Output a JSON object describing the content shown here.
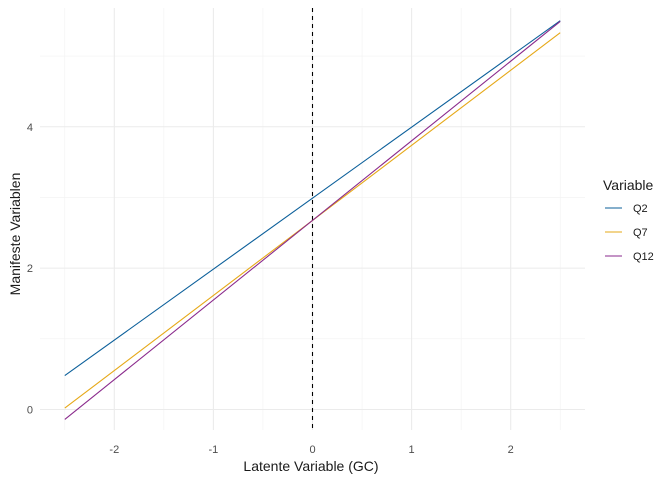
{
  "chart_data": {
    "type": "line",
    "xlabel": "Latente Variable (GC)",
    "ylabel": "Manifeste Variablen",
    "xlim": [
      -2.5,
      2.5
    ],
    "ylim": [
      -0.2,
      5.6
    ],
    "x_ticks": [
      -2,
      -1,
      0,
      1,
      2
    ],
    "y_ticks": [
      0,
      2,
      4
    ],
    "x_tick_labels": [
      "-2",
      "-1",
      "0",
      "1",
      "2"
    ],
    "y_tick_labels": [
      "0",
      "2",
      "4"
    ],
    "grid": true,
    "reference_line": {
      "x": 0,
      "style": "dashed",
      "color": "#000000"
    },
    "legend": {
      "title": "Variable",
      "placement": "right"
    },
    "series": [
      {
        "name": "Q2",
        "color": "#0b5f9a",
        "x": [
          -2.5,
          2.5
        ],
        "y": [
          0.48,
          5.5
        ]
      },
      {
        "name": "Q7",
        "color": "#e6a817",
        "x": [
          -2.5,
          2.5
        ],
        "y": [
          0.02,
          5.33
        ]
      },
      {
        "name": "Q12",
        "color": "#8a2a8c",
        "x": [
          -2.5,
          2.5
        ],
        "y": [
          -0.14,
          5.49
        ]
      }
    ]
  }
}
